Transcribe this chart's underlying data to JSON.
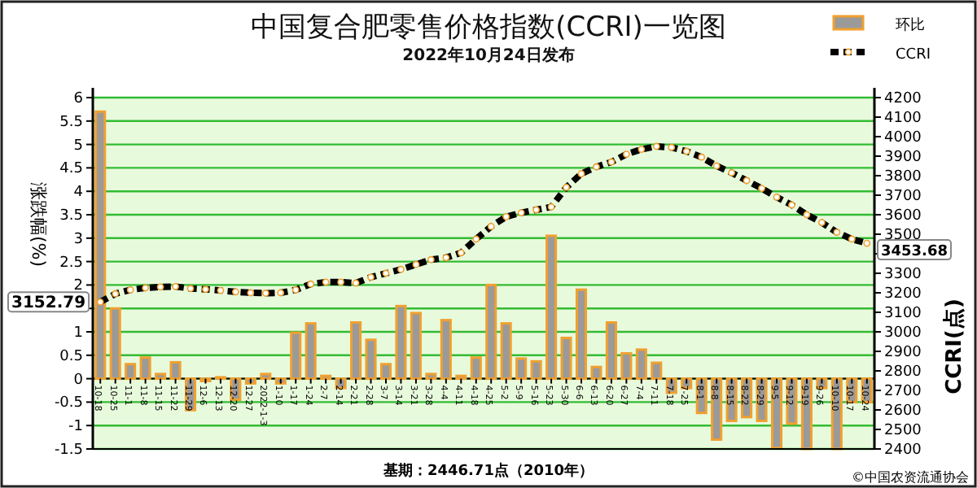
{
  "chart_data": {
    "type": "bar",
    "title": "中国复合肥零售价格指数(CCRI)一览图",
    "subtitle": "2022年10月24日发布",
    "ylabel": "涨跌幅(%)",
    "y2label": "CCRI(点)",
    "categories": [
      "10-18",
      "10-25",
      "11-1",
      "11-8",
      "11-15",
      "11-22",
      "11-29",
      "12-6",
      "12-13",
      "12-20",
      "12-27",
      "2022-1-3",
      "1-10",
      "1-17",
      "1-24",
      "2-7",
      "2-14",
      "2-21",
      "2-28",
      "3-7",
      "3-14",
      "3-21",
      "3-28",
      "4-4",
      "4-11",
      "4-18",
      "4-25",
      "5-2",
      "5-9",
      "5-16",
      "5-23",
      "5-30",
      "6-6",
      "6-13",
      "6-20",
      "6-27",
      "7-4",
      "7-11",
      "7-18",
      "7-25",
      "8-1",
      "8-8",
      "8-15",
      "8-22",
      "8-29",
      "9-5",
      "9-12",
      "9-19",
      "9-26",
      "10-10",
      "10-17",
      "10-24"
    ],
    "series": [
      {
        "name": "环比",
        "type": "bar",
        "color": "#f0a030",
        "values": [
          5.7,
          1.5,
          0.31,
          0.45,
          0.1,
          0.35,
          -0.67,
          -0.05,
          0.03,
          -0.45,
          -0.1,
          0.1,
          -0.1,
          0.98,
          1.18,
          0.06,
          -0.2,
          1.2,
          0.83,
          0.31,
          1.55,
          1.4,
          0.1,
          1.25,
          0.06,
          0.45,
          2.0,
          1.18,
          0.43,
          0.37,
          3.05,
          0.87,
          1.9,
          0.25,
          1.2,
          0.54,
          0.62,
          0.34,
          -0.3,
          -0.2,
          -0.73,
          -1.3,
          -0.9,
          -0.82,
          -0.9,
          -1.48,
          -0.96,
          -1.5,
          -0.2,
          -1.5,
          -0.5,
          -0.5
        ]
      },
      {
        "name": "CCRI",
        "type": "line",
        "axis": "y2",
        "color": "#000000",
        "marker": "circle",
        "line_style": "dashed",
        "values": [
          3152.79,
          3195,
          3215,
          3225,
          3230,
          3232,
          3222,
          3218,
          3212,
          3205,
          3200,
          3198,
          3200,
          3215,
          3245,
          3255,
          3255,
          3250,
          3280,
          3300,
          3320,
          3345,
          3370,
          3380,
          3405,
          3475,
          3540,
          3590,
          3610,
          3625,
          3640,
          3740,
          3810,
          3845,
          3870,
          3910,
          3935,
          3950,
          3945,
          3925,
          3895,
          3850,
          3815,
          3775,
          3735,
          3690,
          3650,
          3600,
          3560,
          3510,
          3475,
          3453.68
        ]
      }
    ],
    "ylim": [
      -1.5,
      6
    ],
    "yticks": [
      -1.5,
      -1,
      -0.5,
      0,
      0.5,
      1,
      {
        "value": 1.5,
        "label": null
      },
      2,
      2.5,
      3,
      3.5,
      4,
      4.5,
      5,
      5.5,
      6
    ],
    "y2lim": [
      2400,
      4200
    ],
    "y2ticks": [
      2400,
      2500,
      2600,
      2700,
      2800,
      2900,
      3000,
      3100,
      3200,
      3300,
      {
        "value": 3400,
        "label": null
      },
      3500,
      3600,
      3700,
      3800,
      3900,
      4000,
      4100,
      4200
    ],
    "grid": "y",
    "legend": "top right",
    "annotations": [
      "3152.79",
      "3453.68",
      "基期：2446.71点（2010年）",
      "©中国农资流通协会"
    ]
  }
}
